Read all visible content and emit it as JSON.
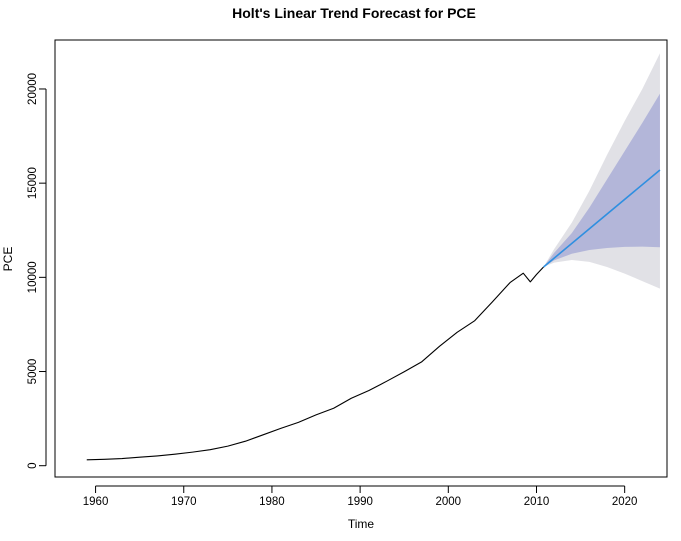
{
  "chart_data": {
    "type": "line",
    "title": "Holt's Linear Trend Forecast for PCE",
    "xlabel": "Time",
    "ylabel": "PCE",
    "xlim": [
      1955.4,
      2024.8
    ],
    "ylim": [
      -600,
      22600
    ],
    "x_ticks": [
      1960,
      1970,
      1980,
      1990,
      2000,
      2010,
      2020
    ],
    "y_ticks": [
      0,
      5000,
      10000,
      15000,
      20000
    ],
    "grid": false,
    "legend": "none",
    "colors": {
      "history": "#000000",
      "forecast": "#2f8fe0",
      "band_80": "#b3b6d9",
      "band_95": "#e1e1e6"
    },
    "series": [
      {
        "role": "history",
        "x": [
          1959.0,
          1961,
          1963,
          1965,
          1967,
          1969,
          1971,
          1973,
          1975,
          1977,
          1979,
          1981,
          1983,
          1985,
          1987,
          1989,
          1991,
          1993,
          1995,
          1997,
          1999,
          2001,
          2003,
          2005,
          2007,
          2008.5,
          2009.3,
          2010,
          2010.8
        ],
        "y": [
          310,
          340,
          380,
          450,
          520,
          610,
          720,
          850,
          1040,
          1300,
          1640,
          1980,
          2300,
          2700,
          3050,
          3580,
          3990,
          4480,
          4990,
          5520,
          6340,
          7080,
          7700,
          8700,
          9720,
          10220,
          9760,
          10150,
          10550
        ]
      },
      {
        "role": "forecast",
        "x": [
          2010.8,
          2024.0
        ],
        "y": [
          10550,
          15700
        ]
      }
    ],
    "bands": [
      {
        "level": "95",
        "x": [
          2010.8,
          2012,
          2014,
          2016,
          2018,
          2020,
          2022,
          2024.0
        ],
        "lower": [
          10550,
          10780,
          10920,
          10820,
          10550,
          10200,
          9800,
          9400
        ],
        "upper": [
          10550,
          11500,
          12900,
          14600,
          16500,
          18300,
          20000,
          21900
        ]
      },
      {
        "level": "80",
        "x": [
          2010.8,
          2012,
          2014,
          2016,
          2018,
          2020,
          2022,
          2024.0
        ],
        "lower": [
          10550,
          10900,
          11250,
          11450,
          11560,
          11620,
          11630,
          11600
        ],
        "upper": [
          10550,
          11300,
          12350,
          13700,
          15200,
          16700,
          18200,
          19750
        ]
      }
    ]
  }
}
